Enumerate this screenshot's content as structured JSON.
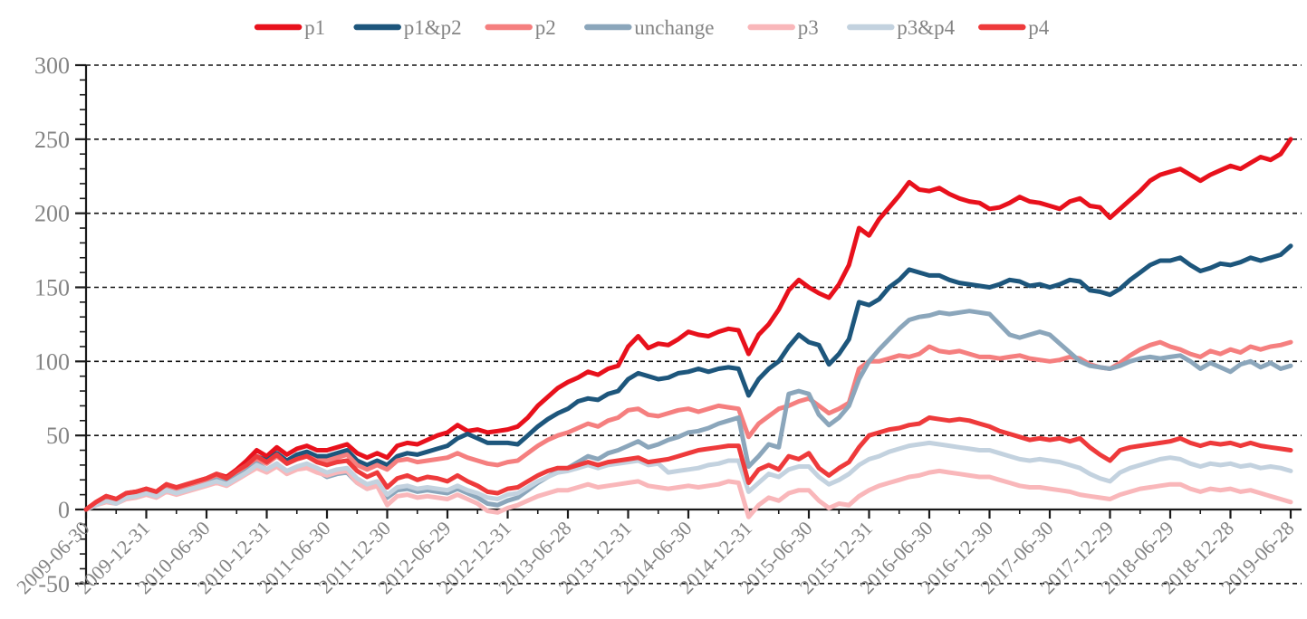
{
  "chart_data": {
    "type": "line",
    "title": "",
    "legend_position": "top",
    "x_tick_labels": [
      "2009-06-30",
      "2009-12-31",
      "2010-06-30",
      "2010-12-31",
      "2011-06-30",
      "2011-12-30",
      "2012-06-29",
      "2012-12-31",
      "2013-06-28",
      "2013-12-31",
      "2014-06-30",
      "2014-12-31",
      "2015-06-30",
      "2015-12-31",
      "2016-06-30",
      "2016-12-30",
      "2017-06-30",
      "2017-12-29",
      "2018-06-29",
      "2018-12-28",
      "2019-06-28"
    ],
    "x_points_per_series": 121,
    "x_major_tick_every_points": 6,
    "x_minor_tick_every_points": 3,
    "y_axis": {
      "min": -50,
      "max": 300,
      "major_step": 50,
      "minor_step": 10,
      "major_tick_labels": [
        "-50",
        "0",
        "50",
        "100",
        "150",
        "200",
        "250",
        "300"
      ],
      "dashed_gridline_values": [
        300,
        250,
        200,
        150,
        100,
        50,
        -50
      ],
      "solid_zero_axis": true
    },
    "styles": {
      "axis_color": "#1a1a1a",
      "gridline_color": "#111111",
      "tick_label_color": "#848484",
      "legend_label_color": "#848484",
      "background_color": "#ffffff"
    },
    "series": [
      {
        "name": "p1",
        "color": "#e8111c",
        "values": [
          0,
          5,
          9,
          7,
          11,
          12,
          14,
          12,
          17,
          14,
          16,
          19,
          21,
          24,
          22,
          27,
          33,
          40,
          36,
          42,
          37,
          41,
          43,
          40,
          40,
          42,
          44,
          38,
          35,
          38,
          35,
          43,
          45,
          44,
          47,
          50,
          52,
          57,
          53,
          54,
          52,
          53,
          54,
          56,
          62,
          70,
          76,
          82,
          86,
          89,
          93,
          91,
          95,
          97,
          110,
          117,
          109,
          112,
          111,
          115,
          120,
          118,
          117,
          120,
          122,
          121,
          105,
          118,
          125,
          135,
          148,
          155,
          150,
          146,
          143,
          152,
          165,
          190,
          185,
          196,
          204,
          212,
          221,
          216,
          215,
          217,
          213,
          210,
          208,
          207,
          203,
          204,
          207,
          211,
          208,
          207,
          205,
          203,
          208,
          210,
          205,
          204,
          197,
          203,
          209,
          215,
          222,
          226,
          228,
          230,
          226,
          222,
          226,
          229,
          232,
          230,
          234,
          238,
          236,
          240,
          250
        ]
      },
      {
        "name": "p1&p2",
        "color": "#1d567c",
        "values": [
          0,
          4,
          8,
          6,
          10,
          11,
          13,
          11,
          15,
          13,
          15,
          17,
          19,
          22,
          20,
          24,
          30,
          36,
          33,
          38,
          33,
          37,
          39,
          36,
          36,
          38,
          40,
          33,
          30,
          33,
          30,
          36,
          38,
          37,
          39,
          41,
          43,
          48,
          51,
          48,
          45,
          45,
          45,
          44,
          50,
          56,
          61,
          65,
          68,
          73,
          75,
          74,
          78,
          80,
          88,
          92,
          90,
          88,
          89,
          92,
          93,
          95,
          93,
          95,
          96,
          95,
          77,
          88,
          95,
          100,
          110,
          118,
          113,
          111,
          98,
          105,
          115,
          140,
          138,
          142,
          150,
          155,
          162,
          160,
          158,
          158,
          155,
          153,
          152,
          151,
          150,
          152,
          155,
          154,
          151,
          152,
          150,
          152,
          155,
          154,
          148,
          147,
          145,
          149,
          155,
          160,
          165,
          168,
          168,
          170,
          165,
          161,
          163,
          166,
          165,
          167,
          170,
          168,
          170,
          172,
          178
        ]
      },
      {
        "name": "p2",
        "color": "#f57f7f",
        "values": [
          0,
          4,
          7,
          5,
          9,
          10,
          12,
          10,
          14,
          12,
          14,
          16,
          18,
          21,
          19,
          23,
          28,
          34,
          31,
          36,
          31,
          34,
          36,
          33,
          33,
          35,
          37,
          30,
          27,
          30,
          27,
          33,
          34,
          32,
          33,
          34,
          35,
          38,
          35,
          33,
          31,
          30,
          32,
          33,
          38,
          43,
          47,
          50,
          52,
          55,
          58,
          56,
          60,
          62,
          67,
          68,
          64,
          63,
          65,
          67,
          68,
          66,
          68,
          70,
          69,
          68,
          49,
          58,
          63,
          68,
          70,
          73,
          75,
          70,
          65,
          68,
          72,
          95,
          100,
          100,
          102,
          104,
          103,
          105,
          110,
          107,
          106,
          107,
          105,
          103,
          103,
          102,
          103,
          104,
          102,
          101,
          100,
          101,
          103,
          102,
          98,
          96,
          95,
          99,
          104,
          108,
          111,
          113,
          110,
          108,
          105,
          103,
          107,
          105,
          108,
          106,
          110,
          108,
          110,
          111,
          113
        ]
      },
      {
        "name": "unchange",
        "color": "#8ba6bb",
        "values": [
          0,
          4,
          7,
          5,
          8,
          9,
          11,
          9,
          13,
          11,
          13,
          15,
          17,
          20,
          18,
          22,
          26,
          31,
          27,
          31,
          25,
          28,
          30,
          26,
          22,
          24,
          25,
          18,
          14,
          16,
          8,
          13,
          14,
          12,
          13,
          12,
          11,
          14,
          11,
          8,
          4,
          3,
          6,
          8,
          13,
          18,
          22,
          26,
          28,
          32,
          36,
          34,
          38,
          40,
          43,
          46,
          42,
          44,
          47,
          49,
          52,
          53,
          55,
          58,
          60,
          62,
          29,
          36,
          44,
          42,
          78,
          80,
          78,
          64,
          57,
          62,
          70,
          88,
          100,
          108,
          115,
          122,
          128,
          130,
          131,
          133,
          132,
          133,
          134,
          133,
          132,
          125,
          118,
          116,
          118,
          120,
          118,
          112,
          106,
          100,
          97,
          96,
          95,
          97,
          100,
          102,
          103,
          102,
          103,
          104,
          100,
          95,
          99,
          96,
          93,
          98,
          100,
          96,
          99,
          95,
          97
        ]
      },
      {
        "name": "p3",
        "color": "#f9b7ba",
        "values": [
          0,
          3,
          5,
          4,
          7,
          8,
          10,
          8,
          12,
          10,
          12,
          14,
          16,
          18,
          16,
          20,
          24,
          28,
          25,
          29,
          24,
          27,
          28,
          25,
          23,
          25,
          26,
          18,
          14,
          16,
          3,
          9,
          10,
          8,
          9,
          8,
          7,
          10,
          7,
          4,
          -1,
          -2,
          1,
          3,
          6,
          9,
          11,
          13,
          13,
          15,
          17,
          15,
          16,
          17,
          18,
          19,
          16,
          15,
          14,
          15,
          16,
          15,
          16,
          17,
          19,
          18,
          -5,
          3,
          8,
          6,
          11,
          13,
          13,
          6,
          1,
          4,
          3,
          9,
          13,
          16,
          18,
          20,
          22,
          23,
          25,
          26,
          25,
          24,
          23,
          22,
          22,
          20,
          18,
          16,
          15,
          15,
          14,
          13,
          12,
          10,
          9,
          8,
          7,
          10,
          12,
          14,
          15,
          16,
          17,
          17,
          14,
          12,
          14,
          13,
          14,
          12,
          13,
          11,
          9,
          7,
          5
        ]
      },
      {
        "name": "p3&p4",
        "color": "#c3d2df",
        "values": [
          0,
          3,
          6,
          4,
          8,
          9,
          11,
          9,
          13,
          11,
          13,
          15,
          17,
          19,
          17,
          21,
          25,
          30,
          27,
          31,
          26,
          29,
          31,
          28,
          25,
          27,
          28,
          21,
          17,
          19,
          10,
          15,
          16,
          14,
          15,
          14,
          13,
          16,
          13,
          11,
          8,
          7,
          10,
          11,
          15,
          19,
          22,
          25,
          26,
          28,
          30,
          28,
          30,
          31,
          32,
          33,
          30,
          31,
          25,
          26,
          27,
          28,
          30,
          31,
          33,
          33,
          12,
          18,
          24,
          22,
          27,
          29,
          29,
          22,
          17,
          20,
          24,
          30,
          34,
          36,
          39,
          41,
          43,
          44,
          45,
          44,
          43,
          42,
          41,
          40,
          40,
          38,
          36,
          34,
          33,
          34,
          33,
          32,
          30,
          28,
          24,
          21,
          19,
          25,
          28,
          30,
          32,
          34,
          35,
          34,
          31,
          29,
          31,
          30,
          31,
          29,
          30,
          28,
          29,
          28,
          26
        ]
      },
      {
        "name": "p4",
        "color": "#ee3a3b",
        "values": [
          0,
          5,
          9,
          7,
          11,
          12,
          14,
          12,
          17,
          15,
          17,
          19,
          21,
          24,
          21,
          26,
          30,
          36,
          32,
          37,
          31,
          34,
          36,
          32,
          30,
          32,
          33,
          26,
          22,
          25,
          15,
          21,
          23,
          20,
          22,
          21,
          19,
          23,
          19,
          16,
          12,
          11,
          14,
          15,
          19,
          23,
          26,
          28,
          28,
          30,
          32,
          30,
          32,
          33,
          34,
          35,
          32,
          33,
          34,
          36,
          38,
          40,
          41,
          42,
          43,
          43,
          18,
          27,
          30,
          27,
          36,
          34,
          38,
          28,
          23,
          28,
          32,
          42,
          50,
          52,
          54,
          55,
          57,
          58,
          62,
          61,
          60,
          61,
          60,
          58,
          56,
          53,
          51,
          49,
          47,
          48,
          47,
          48,
          46,
          48,
          42,
          37,
          33,
          40,
          42,
          43,
          44,
          45,
          46,
          48,
          45,
          43,
          45,
          44,
          45,
          43,
          45,
          43,
          42,
          41,
          40
        ]
      }
    ]
  }
}
